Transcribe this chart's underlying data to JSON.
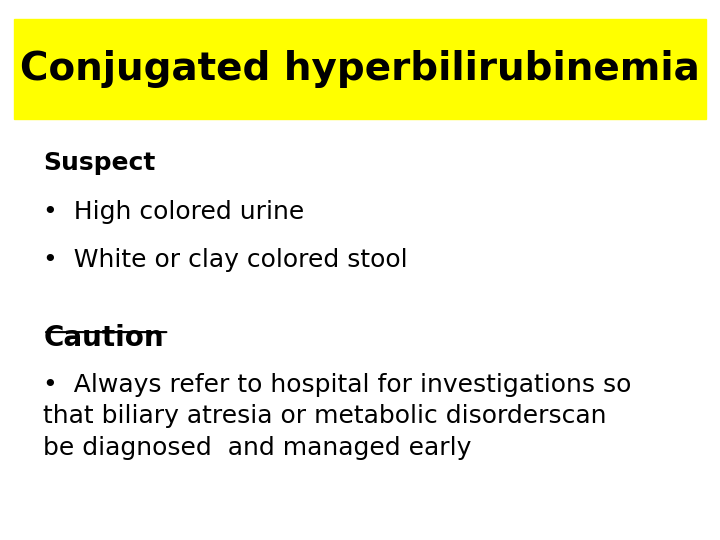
{
  "title": "Conjugated hyperbilirubinemia",
  "title_bg": "#FFFF00",
  "title_fontsize": 28,
  "title_color": "#000000",
  "bg_color": "#FFFFFF",
  "suspect_label": "Suspect",
  "suspect_fontsize": 18,
  "bullet1": "High colored urine",
  "bullet2": "White or clay colored stool",
  "bullet_fontsize": 18,
  "caution_label": "Caution",
  "caution_fontsize": 20,
  "caution_underline": true,
  "caution_bullet": "Always refer to hospital for investigations so\nthat biliary atresia or metabolic disorderscan\nbe diagnosed  and managed early",
  "caution_bullet_fontsize": 18,
  "text_color": "#000000",
  "font_family": "Arial"
}
